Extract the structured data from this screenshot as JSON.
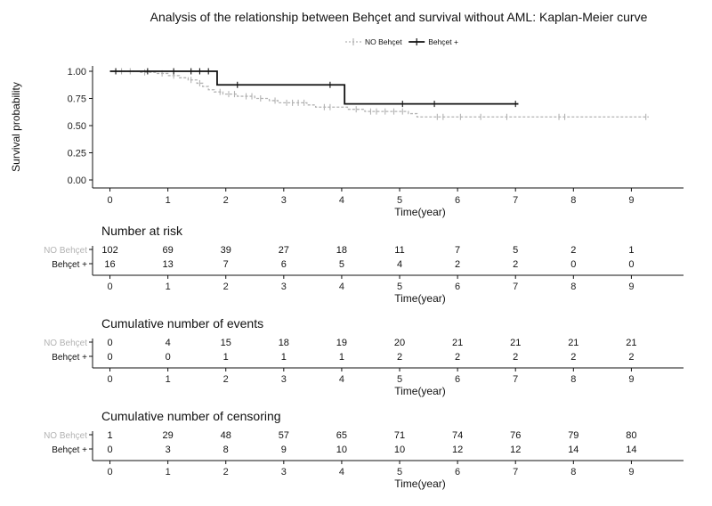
{
  "chart_data": [
    {
      "type": "line",
      "subtype": "step",
      "title": "Analysis of the relationship between Behçet and survival without AML: Kaplan-Meier curve",
      "xlabel": "Time(year)",
      "ylabel": "Survival probability",
      "xlim": [
        -0.3,
        9.9
      ],
      "ylim": [
        0,
        1
      ],
      "x_ticks": [
        "0",
        "1",
        "2",
        "3",
        "4",
        "5",
        "6",
        "7",
        "8",
        "9"
      ],
      "y_ticks": [
        "0.00",
        "0.25",
        "0.50",
        "0.75",
        "1.00"
      ],
      "legend_position": "top",
      "grid": false,
      "series": [
        {
          "name": "NO Behçet",
          "color": "#b3b3b3",
          "style": "dashed",
          "steps": [
            [
              0,
              1.0
            ],
            [
              0.5,
              0.99
            ],
            [
              0.8,
              0.98
            ],
            [
              1.0,
              0.96
            ],
            [
              1.2,
              0.94
            ],
            [
              1.35,
              0.92
            ],
            [
              1.5,
              0.89
            ],
            [
              1.6,
              0.86
            ],
            [
              1.7,
              0.83
            ],
            [
              1.8,
              0.81
            ],
            [
              1.95,
              0.79
            ],
            [
              2.2,
              0.77
            ],
            [
              2.5,
              0.75
            ],
            [
              2.75,
              0.73
            ],
            [
              2.9,
              0.71
            ],
            [
              3.4,
              0.69
            ],
            [
              3.55,
              0.67
            ],
            [
              4.0,
              0.67
            ],
            [
              4.1,
              0.65
            ],
            [
              4.4,
              0.63
            ],
            [
              5.15,
              0.61
            ],
            [
              5.3,
              0.58
            ],
            [
              9.3,
              0.58
            ]
          ],
          "censor_marks": [
            [
              0.1,
              1.0
            ],
            [
              0.2,
              1.0
            ],
            [
              0.35,
              1.0
            ],
            [
              0.6,
              0.99
            ],
            [
              0.9,
              0.98
            ],
            [
              1.1,
              0.96
            ],
            [
              1.4,
              0.92
            ],
            [
              1.55,
              0.89
            ],
            [
              1.9,
              0.81
            ],
            [
              2.05,
              0.79
            ],
            [
              2.15,
              0.79
            ],
            [
              2.35,
              0.77
            ],
            [
              2.45,
              0.77
            ],
            [
              2.6,
              0.75
            ],
            [
              2.85,
              0.73
            ],
            [
              3.05,
              0.71
            ],
            [
              3.15,
              0.71
            ],
            [
              3.25,
              0.71
            ],
            [
              3.35,
              0.71
            ],
            [
              3.7,
              0.67
            ],
            [
              3.8,
              0.67
            ],
            [
              4.25,
              0.65
            ],
            [
              4.5,
              0.63
            ],
            [
              4.6,
              0.63
            ],
            [
              4.75,
              0.63
            ],
            [
              4.9,
              0.63
            ],
            [
              5.05,
              0.63
            ],
            [
              5.65,
              0.58
            ],
            [
              5.75,
              0.58
            ],
            [
              6.05,
              0.58
            ],
            [
              6.4,
              0.58
            ],
            [
              6.85,
              0.58
            ],
            [
              7.75,
              0.58
            ],
            [
              7.85,
              0.58
            ],
            [
              9.25,
              0.58
            ]
          ]
        },
        {
          "name": "Behçet +",
          "color": "#111111",
          "style": "solid",
          "steps": [
            [
              0,
              1.0
            ],
            [
              1.85,
              0.875
            ],
            [
              4.05,
              0.7
            ],
            [
              7.05,
              0.7
            ]
          ],
          "censor_marks": [
            [
              0.1,
              1.0
            ],
            [
              0.65,
              1.0
            ],
            [
              1.1,
              1.0
            ],
            [
              1.4,
              1.0
            ],
            [
              1.55,
              1.0
            ],
            [
              1.7,
              1.0
            ],
            [
              2.2,
              0.875
            ],
            [
              3.8,
              0.875
            ],
            [
              5.05,
              0.7
            ],
            [
              5.6,
              0.7
            ],
            [
              7.0,
              0.7
            ]
          ]
        }
      ]
    },
    {
      "type": "table",
      "title": "Number at risk",
      "xlabel": "Time(year)",
      "x": [
        0,
        1,
        2,
        3,
        4,
        5,
        6,
        7,
        8,
        9
      ],
      "rows": [
        {
          "name": "NO Behçet",
          "color": "#b3b3b3",
          "values": [
            "102",
            "69",
            "39",
            "27",
            "18",
            "11",
            "7",
            "5",
            "2",
            "1"
          ]
        },
        {
          "name": "Behçet +",
          "color": "#111111",
          "values": [
            "16",
            "13",
            "7",
            "6",
            "5",
            "4",
            "2",
            "2",
            "0",
            "0"
          ]
        }
      ]
    },
    {
      "type": "table",
      "title": "Cumulative number of events",
      "xlabel": "Time(year)",
      "x": [
        0,
        1,
        2,
        3,
        4,
        5,
        6,
        7,
        8,
        9
      ],
      "rows": [
        {
          "name": "NO Behçet",
          "color": "#b3b3b3",
          "values": [
            "0",
            "4",
            "15",
            "18",
            "19",
            "20",
            "21",
            "21",
            "21",
            "21"
          ]
        },
        {
          "name": "Behçet +",
          "color": "#111111",
          "values": [
            "0",
            "0",
            "1",
            "1",
            "1",
            "2",
            "2",
            "2",
            "2",
            "2"
          ]
        }
      ]
    },
    {
      "type": "table",
      "title": "Cumulative number of censoring",
      "xlabel": "Time(year)",
      "x": [
        0,
        1,
        2,
        3,
        4,
        5,
        6,
        7,
        8,
        9
      ],
      "rows": [
        {
          "name": "NO Behçet",
          "color": "#b3b3b3",
          "values": [
            "1",
            "29",
            "48",
            "57",
            "65",
            "71",
            "74",
            "76",
            "79",
            "80"
          ]
        },
        {
          "name": "Behçet +",
          "color": "#111111",
          "values": [
            "0",
            "3",
            "8",
            "9",
            "10",
            "10",
            "12",
            "12",
            "14",
            "14"
          ]
        }
      ]
    }
  ]
}
